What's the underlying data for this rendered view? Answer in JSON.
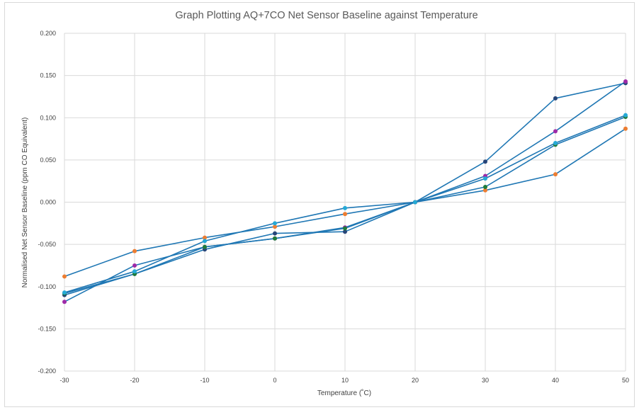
{
  "chart_data": {
    "type": "line",
    "title": "Graph Plotting AQ+7CO Net Sensor Baseline against Temperature",
    "xlabel": "Temperature (˚C)",
    "ylabel": "Normalised Net Sensor Baseline (ppm CO Equivalent)",
    "xlim": [
      -30,
      50
    ],
    "ylim": [
      -0.2,
      0.2
    ],
    "x_ticks": [
      "-30",
      "-20",
      "-10",
      "0",
      "10",
      "20",
      "30",
      "40",
      "50"
    ],
    "y_ticks": [
      "0.200",
      "0.150",
      "0.100",
      "0.050",
      "0.000",
      "-0.050",
      "-0.100",
      "-0.150",
      "-0.200"
    ],
    "grid": true,
    "line_color": "#1f77b4",
    "x": [
      -30,
      -20,
      -10,
      0,
      10,
      20,
      30,
      40,
      50
    ],
    "series": [
      {
        "marker_color": "#ed7d31",
        "values": [
          -0.088,
          -0.058,
          -0.042,
          -0.029,
          -0.014,
          0.0,
          0.014,
          0.033,
          0.087
        ]
      },
      {
        "marker_color": "#264478",
        "values": [
          -0.11,
          -0.085,
          -0.056,
          -0.037,
          -0.035,
          0.0,
          0.048,
          0.123,
          0.141
        ]
      },
      {
        "marker_color": "#9e2aa8",
        "values": [
          -0.118,
          -0.075,
          -0.053,
          -0.043,
          -0.03,
          0.0,
          0.031,
          0.084,
          0.143
        ]
      },
      {
        "marker_color": "#1e7b3a",
        "values": [
          -0.108,
          -0.085,
          -0.053,
          -0.043,
          -0.031,
          0.0,
          0.018,
          0.068,
          0.101
        ]
      },
      {
        "marker_color": "#25a9d6",
        "values": [
          -0.107,
          -0.082,
          -0.046,
          -0.025,
          -0.007,
          0.0,
          0.028,
          0.07,
          0.103
        ]
      }
    ]
  }
}
